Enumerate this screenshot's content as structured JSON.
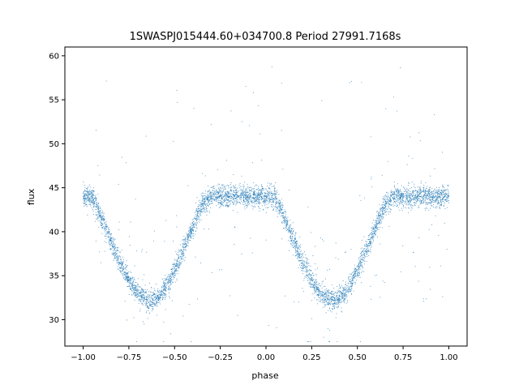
{
  "chart_data": {
    "type": "scatter",
    "title": "1SWASPJ015444.60+034700.8 Period 27991.7168s",
    "xlabel": "phase",
    "ylabel": "flux",
    "xlim": [
      -1.1,
      1.1
    ],
    "ylim": [
      27.0,
      61.0
    ],
    "x_ticks": [
      -1.0,
      -0.75,
      -0.5,
      -0.25,
      0.0,
      0.25,
      0.5,
      0.75,
      1.0
    ],
    "x_tick_labels": [
      "−1.00",
      "−0.75",
      "−0.50",
      "−0.25",
      "0.00",
      "0.25",
      "0.50",
      "0.75",
      "1.00"
    ],
    "y_ticks": [
      30,
      35,
      40,
      45,
      50,
      55,
      60
    ],
    "y_tick_labels": [
      "30",
      "35",
      "40",
      "45",
      "50",
      "55",
      "60"
    ],
    "grid": false,
    "legend": false,
    "series": [
      {
        "color": "#1f77b4",
        "x": [
          -1.0,
          -0.95,
          -0.9,
          -0.85,
          -0.8,
          -0.75,
          -0.7,
          -0.65,
          -0.62,
          -0.6,
          -0.55,
          -0.5,
          -0.45,
          -0.4,
          -0.35,
          -0.3,
          -0.25,
          -0.2,
          -0.15,
          -0.1,
          -0.05,
          0.0,
          0.05,
          0.1,
          0.15,
          0.2,
          0.25,
          0.3,
          0.35,
          0.38,
          0.4,
          0.45,
          0.5,
          0.55,
          0.6,
          0.65,
          0.7,
          0.75,
          0.8,
          0.85,
          0.9,
          0.95,
          1.0
        ],
        "y": [
          44.0,
          44.0,
          41.5,
          39.0,
          36.5,
          34.5,
          33.0,
          32.3,
          32.2,
          32.4,
          33.5,
          35.5,
          38.0,
          40.5,
          43.0,
          44.0,
          44.0,
          44.0,
          44.0,
          44.0,
          44.0,
          44.0,
          44.0,
          41.5,
          39.0,
          36.5,
          34.5,
          33.0,
          32.3,
          32.2,
          32.4,
          33.5,
          35.5,
          38.0,
          40.5,
          43.0,
          44.0,
          44.0,
          44.0,
          44.0,
          44.0,
          44.0,
          44.0
        ],
        "scatter_spread": 0.6,
        "outlier_range": [
          29.0,
          59.0
        ]
      }
    ]
  }
}
